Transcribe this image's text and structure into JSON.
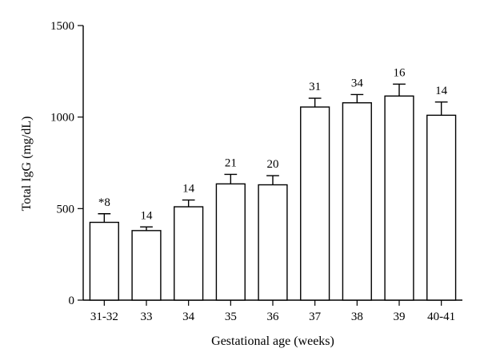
{
  "chart_data": {
    "type": "bar",
    "xlabel": "Gestational age (weeks)",
    "ylabel": "Total IgG (mg/dL)",
    "ylim": [
      0,
      1500
    ],
    "yticks": [
      0,
      500,
      1000,
      1500
    ],
    "categories": [
      "31-32",
      "33",
      "34",
      "35",
      "36",
      "37",
      "38",
      "39",
      "40-41"
    ],
    "values": [
      425,
      380,
      510,
      635,
      630,
      1055,
      1078,
      1115,
      1010
    ],
    "errors": [
      47,
      20,
      37,
      52,
      50,
      48,
      45,
      65,
      72
    ],
    "annotations": [
      "*8",
      "14",
      "14",
      "21",
      "20",
      "31",
      "34",
      "16",
      "14"
    ],
    "grid": false
  }
}
